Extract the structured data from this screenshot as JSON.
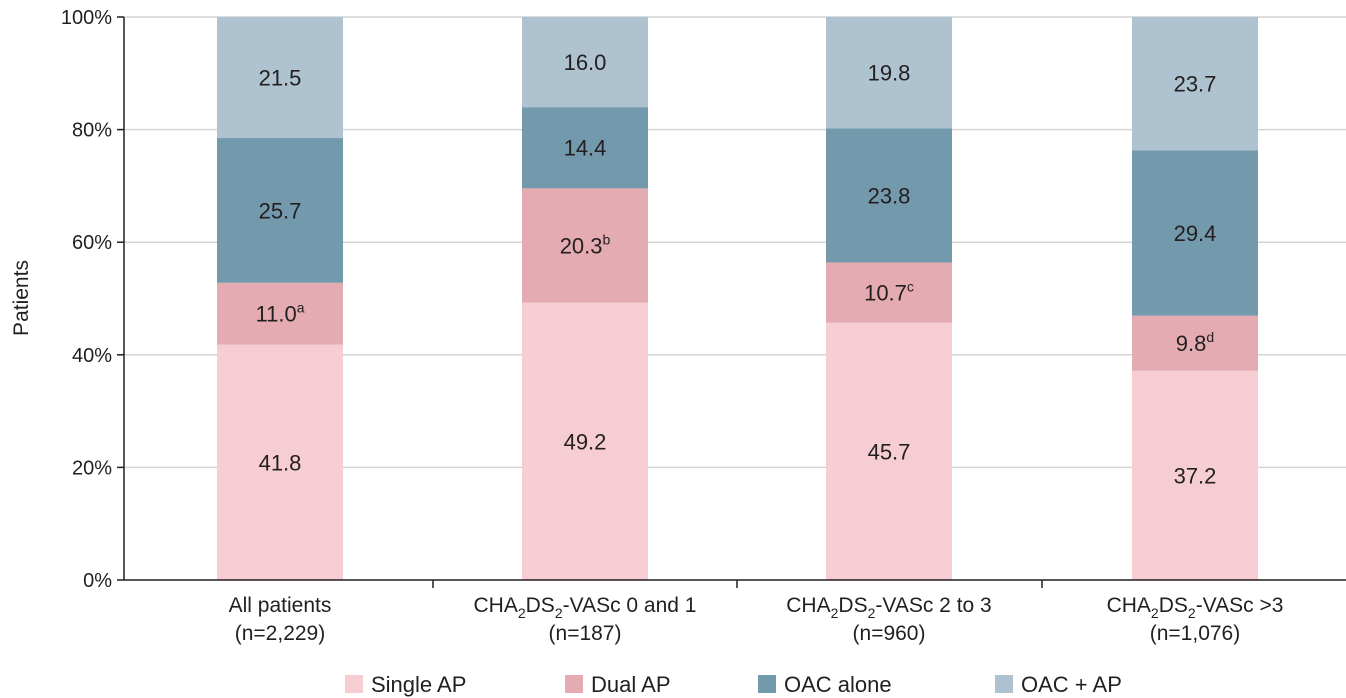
{
  "chart_data": {
    "type": "bar",
    "stacked": true,
    "ylabel": "Patients",
    "xlabel": "",
    "ylim": [
      0,
      100
    ],
    "yticks": [
      "0%",
      "20%",
      "40%",
      "60%",
      "80%",
      "100%"
    ],
    "categories": [
      {
        "line1": [
          "CHA",
          "",
          "DS",
          "",
          "-VASc"
        ],
        "line1_plain": "All patients",
        "line2": "(n=2,229)"
      },
      {
        "line1": [
          "CHA",
          "2",
          "DS",
          "2",
          "-VASc 0 and 1"
        ],
        "line2": "(n=187)"
      },
      {
        "line1": [
          "CHA",
          "2",
          "DS",
          "2",
          "-VASc 2 to 3"
        ],
        "line2": "(n=960)"
      },
      {
        "line1": [
          "CHA",
          "2",
          "DS",
          "2",
          "-VASc >3"
        ],
        "line2": "(n=1,076)"
      }
    ],
    "series": [
      {
        "name": "Single AP",
        "color": "#f6cdd3",
        "values": [
          41.8,
          49.2,
          45.7,
          37.2
        ],
        "labels": [
          "41.8",
          "49.2",
          "45.7",
          "37.2"
        ],
        "sups": [
          "",
          "",
          "",
          ""
        ]
      },
      {
        "name": "Dual AP",
        "color": "#e4abb3",
        "values": [
          11.0,
          20.3,
          10.7,
          9.8
        ],
        "labels": [
          "11.0",
          "20.3",
          "10.7",
          "9.8"
        ],
        "sups": [
          "a",
          "b",
          "c",
          "d"
        ]
      },
      {
        "name": "OAC alone",
        "color": "#7399ad",
        "values": [
          25.7,
          14.4,
          23.8,
          29.4
        ],
        "labels": [
          "25.7",
          "14.4",
          "23.8",
          "29.4"
        ],
        "sups": [
          "",
          "",
          "",
          ""
        ]
      },
      {
        "name": "OAC + AP",
        "color": "#aec3cf",
        "values": [
          21.5,
          16.0,
          19.8,
          23.7
        ],
        "labels": [
          "21.5",
          "16.0",
          "19.8",
          "23.7"
        ],
        "sups": [
          "",
          "",
          "",
          ""
        ]
      }
    ],
    "grid": true,
    "legend": "bottom"
  }
}
